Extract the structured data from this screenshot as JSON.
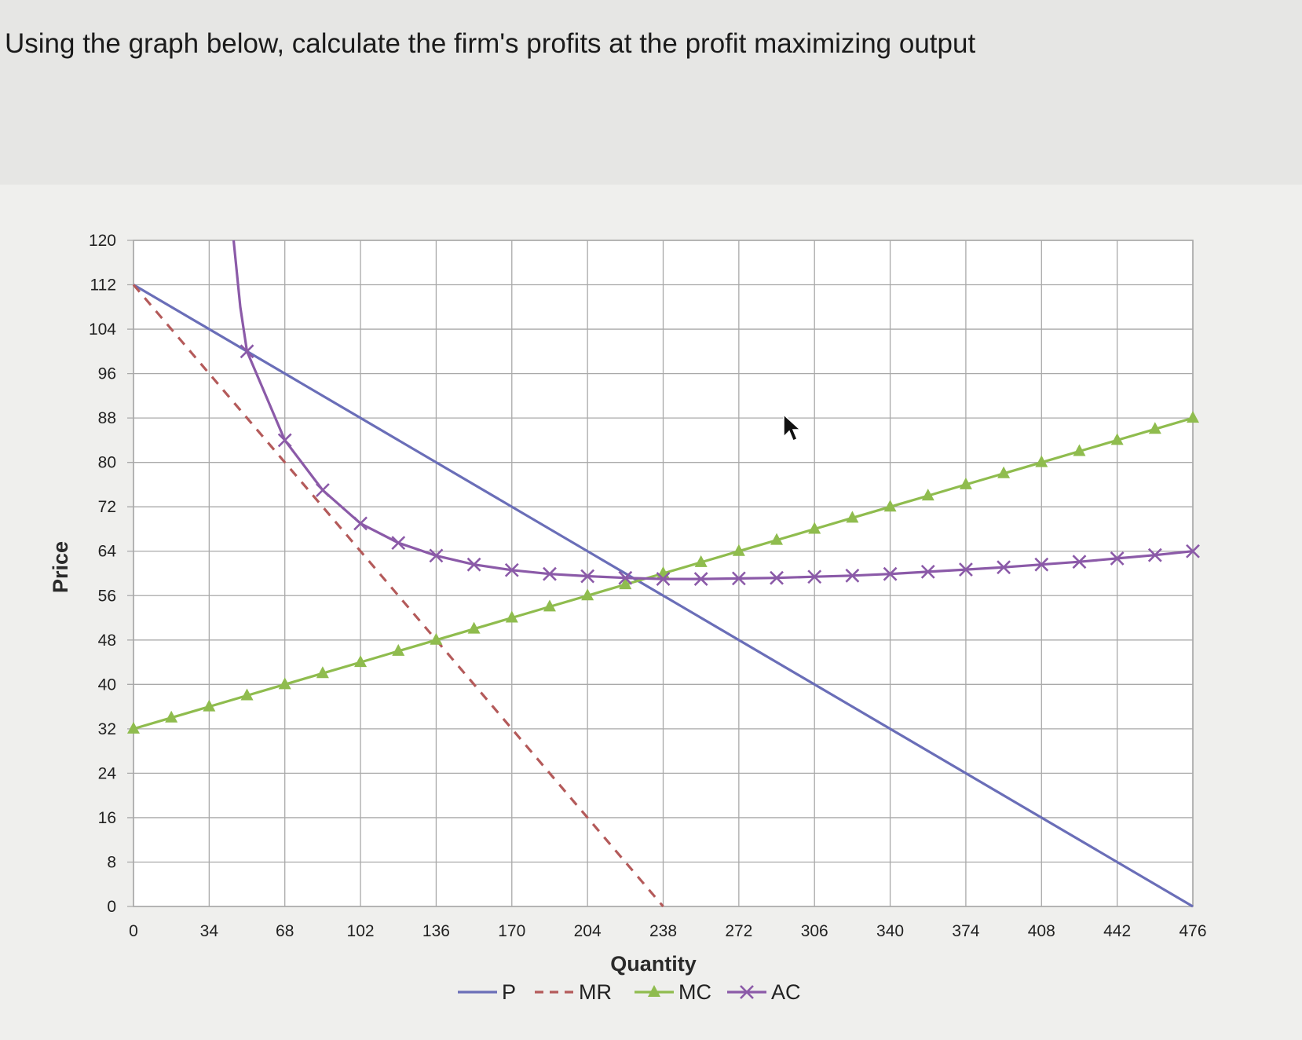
{
  "question": "Using the graph below, calculate the firm's profits at the profit maximizing output",
  "chart_data": {
    "type": "line",
    "xlabel": "Quantity",
    "ylabel": "Price",
    "xlim": [
      0,
      476
    ],
    "ylim": [
      0,
      120
    ],
    "x_ticks": [
      "0",
      "34",
      "68",
      "102",
      "136",
      "170",
      "204",
      "238",
      "272",
      "306",
      "340",
      "374",
      "408",
      "442",
      "476"
    ],
    "y_ticks": [
      "0",
      "8",
      "16",
      "24",
      "32",
      "40",
      "48",
      "56",
      "64",
      "72",
      "80",
      "88",
      "96",
      "104",
      "112",
      "120"
    ],
    "grid": true,
    "legend_position": "bottom",
    "colors": {
      "P": "#6a6eb8",
      "MR": "#b45a5a",
      "MC": "#8fbc4e",
      "AC": "#8b5aa8"
    },
    "series": [
      {
        "name": "P",
        "style": "solid",
        "x": [
          0,
          476
        ],
        "y": [
          112,
          0
        ]
      },
      {
        "name": "MR",
        "style": "dashed",
        "x": [
          0,
          238
        ],
        "y": [
          112,
          0
        ]
      },
      {
        "name": "MC",
        "style": "solid-triangle",
        "x": [
          0,
          17,
          34,
          51,
          68,
          85,
          102,
          119,
          136,
          153,
          170,
          187,
          204,
          221,
          238,
          255,
          272,
          289,
          306,
          323,
          340,
          357,
          374,
          391,
          408,
          425,
          442,
          459,
          476
        ],
        "y": [
          32,
          34,
          36,
          38,
          40,
          42,
          44,
          46,
          48,
          50,
          52,
          54,
          56,
          58,
          60,
          62,
          64,
          66,
          68,
          70,
          72,
          74,
          76,
          78,
          80,
          82,
          84,
          86,
          88
        ]
      },
      {
        "name": "AC",
        "style": "solid-x",
        "x": [
          51,
          68,
          85,
          102,
          119,
          136,
          153,
          170,
          187,
          204,
          221,
          238,
          255,
          272,
          289,
          306,
          323,
          340,
          357,
          374,
          391,
          408,
          425,
          442,
          459,
          476
        ],
        "y": [
          100,
          84,
          75,
          69,
          65.5,
          63.2,
          61.6,
          60.6,
          59.9,
          59.5,
          59.2,
          59,
          59,
          59.1,
          59.2,
          59.4,
          59.6,
          59.9,
          60.3,
          60.7,
          61.1,
          61.6,
          62.1,
          62.7,
          63.3,
          64
        ]
      }
    ]
  }
}
